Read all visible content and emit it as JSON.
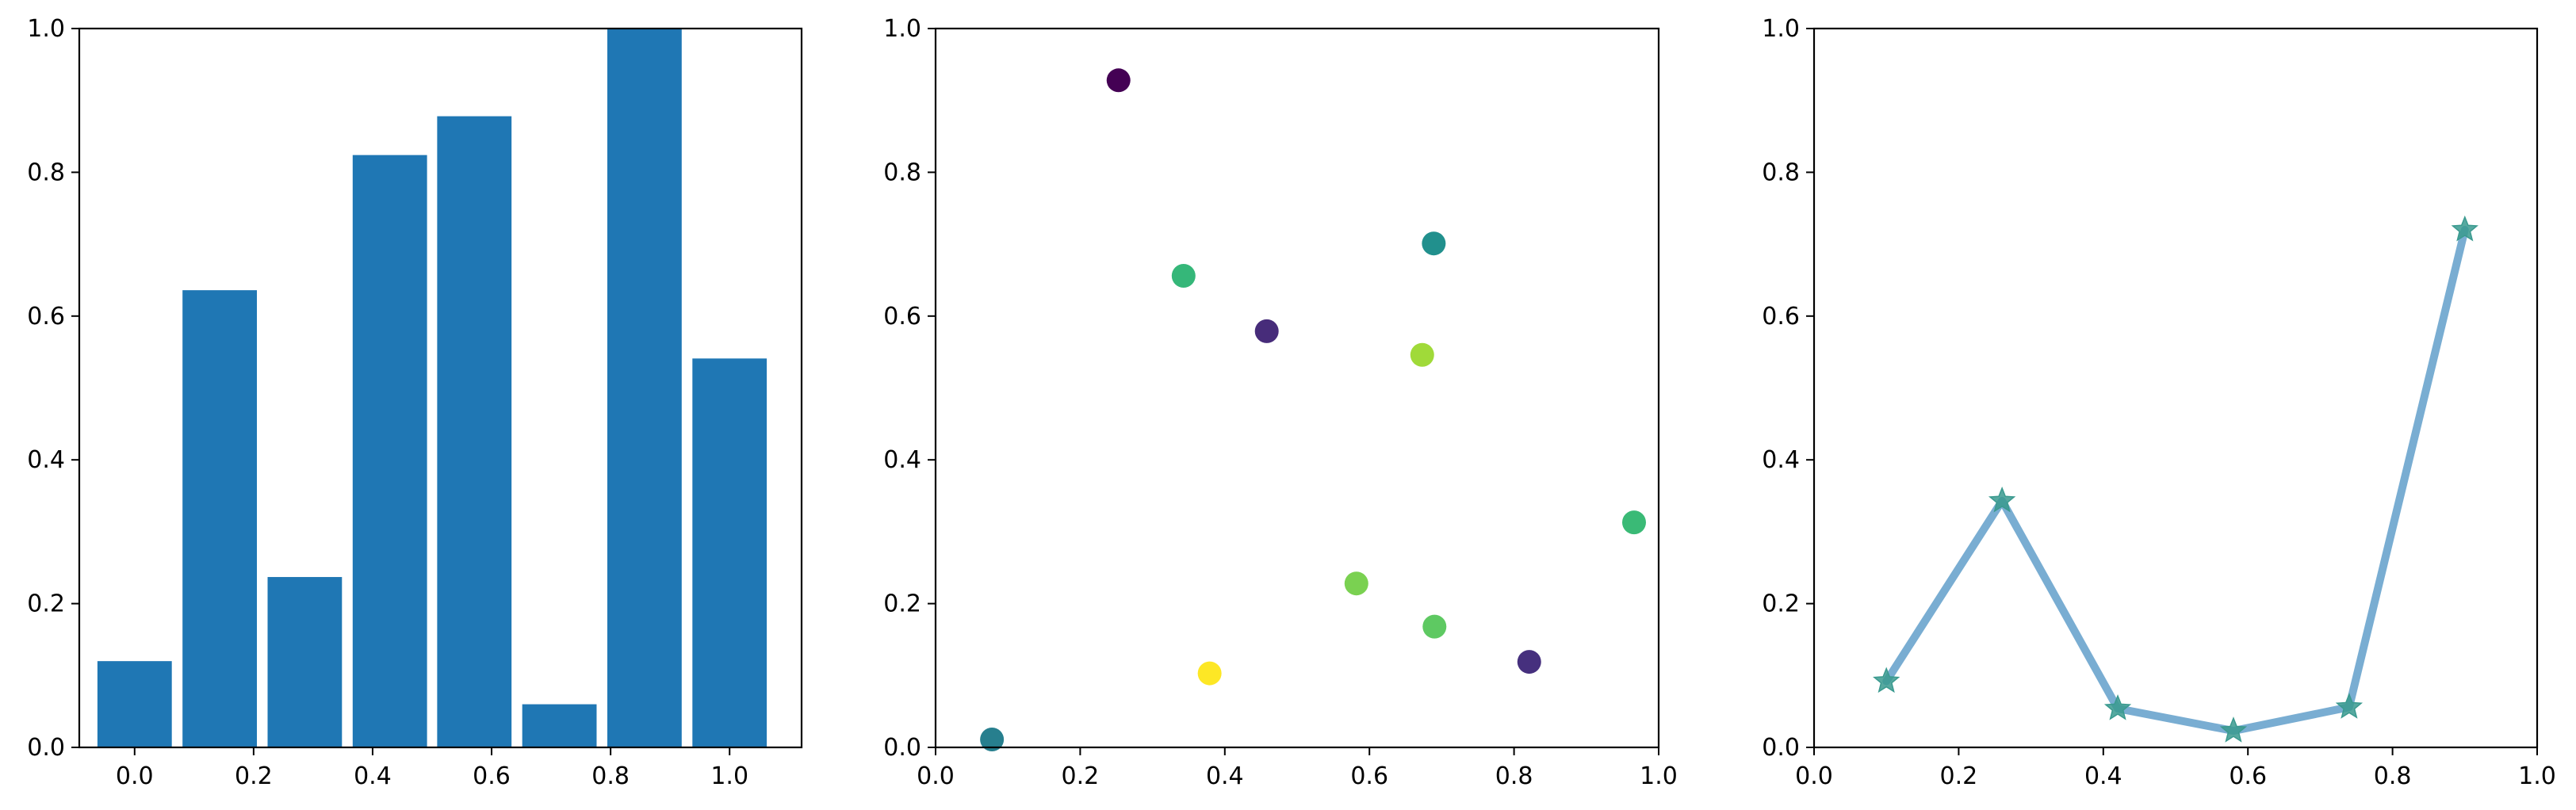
{
  "figure": {
    "background": "#ffffff"
  },
  "chart_data": [
    {
      "type": "bar",
      "title": "",
      "xlabel": "",
      "ylabel": "",
      "x": [
        0.0,
        0.143,
        0.286,
        0.429,
        0.571,
        0.714,
        0.857,
        1.0
      ],
      "values": [
        0.12,
        0.636,
        0.237,
        0.824,
        0.878,
        0.06,
        1.0,
        0.541
      ],
      "bar_width": 0.125,
      "color": "#1f77b4",
      "xlim": [
        -0.093,
        1.121
      ],
      "ylim": [
        0,
        1
      ],
      "xticks": [
        0.0,
        0.2,
        0.4,
        0.6,
        0.8,
        1.0
      ],
      "xtick_labels": [
        "0.0",
        "0.2",
        "0.4",
        "0.6",
        "0.8",
        "1.0"
      ],
      "yticks": [
        0.0,
        0.2,
        0.4,
        0.6,
        0.8,
        1.0
      ],
      "ytick_labels": [
        "0.0",
        "0.2",
        "0.4",
        "0.6",
        "0.8",
        "1.0"
      ],
      "grid": false
    },
    {
      "type": "scatter",
      "title": "",
      "xlabel": "",
      "ylabel": "",
      "points": [
        {
          "x": 0.253,
          "y": 0.928,
          "color": "#440154"
        },
        {
          "x": 0.343,
          "y": 0.656,
          "color": "#35b779"
        },
        {
          "x": 0.458,
          "y": 0.579,
          "color": "#472c7a"
        },
        {
          "x": 0.689,
          "y": 0.701,
          "color": "#21908d"
        },
        {
          "x": 0.673,
          "y": 0.546,
          "color": "#a0da39"
        },
        {
          "x": 0.966,
          "y": 0.313,
          "color": "#3aba76"
        },
        {
          "x": 0.582,
          "y": 0.228,
          "color": "#7ad151"
        },
        {
          "x": 0.69,
          "y": 0.168,
          "color": "#5ec962"
        },
        {
          "x": 0.821,
          "y": 0.119,
          "color": "#46307e"
        },
        {
          "x": 0.379,
          "y": 0.103,
          "color": "#fde725"
        },
        {
          "x": 0.078,
          "y": 0.011,
          "color": "#277f8e"
        }
      ],
      "colormap": "viridis",
      "xlim": [
        0,
        1
      ],
      "ylim": [
        0,
        1
      ],
      "xticks": [
        0.0,
        0.2,
        0.4,
        0.6,
        0.8,
        1.0
      ],
      "xtick_labels": [
        "0.0",
        "0.2",
        "0.4",
        "0.6",
        "0.8",
        "1.0"
      ],
      "yticks": [
        0.0,
        0.2,
        0.4,
        0.6,
        0.8,
        1.0
      ],
      "ytick_labels": [
        "0.0",
        "0.2",
        "0.4",
        "0.6",
        "0.8",
        "1.0"
      ],
      "grid": false
    },
    {
      "type": "line",
      "title": "",
      "xlabel": "",
      "ylabel": "",
      "series": [
        {
          "x": [
            0.1,
            0.26,
            0.42,
            0.58,
            0.74,
            0.9
          ],
          "y": [
            0.092,
            0.343,
            0.054,
            0.023,
            0.056,
            0.72
          ],
          "color": "#1f77b4",
          "marker": "star",
          "marker_color": "#3a9a8f"
        }
      ],
      "xlim": [
        0,
        1
      ],
      "ylim": [
        0,
        1
      ],
      "xticks": [
        0.0,
        0.2,
        0.4,
        0.6,
        0.8,
        1.0
      ],
      "xtick_labels": [
        "0.0",
        "0.2",
        "0.4",
        "0.6",
        "0.8",
        "1.0"
      ],
      "yticks": [
        0.0,
        0.2,
        0.4,
        0.6,
        0.8,
        1.0
      ],
      "ytick_labels": [
        "0.0",
        "0.2",
        "0.4",
        "0.6",
        "0.8",
        "1.0"
      ],
      "grid": false
    }
  ]
}
